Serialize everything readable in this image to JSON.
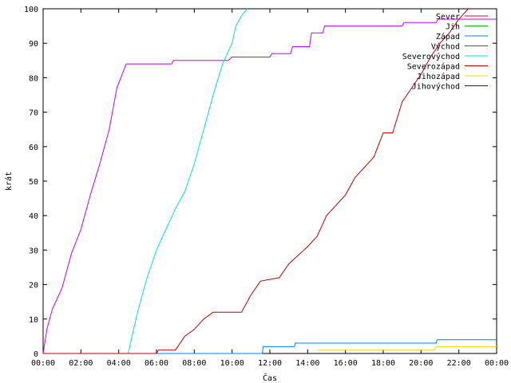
{
  "chart_data": {
    "type": "line",
    "xlabel": "Čas",
    "ylabel": "krát",
    "xlim": [
      0,
      24
    ],
    "ylim": [
      0,
      100
    ],
    "x_ticks": [
      {
        "v": 0,
        "label": "00:00"
      },
      {
        "v": 2,
        "label": "02:00"
      },
      {
        "v": 4,
        "label": "04:00"
      },
      {
        "v": 6,
        "label": "06:00"
      },
      {
        "v": 8,
        "label": "08:00"
      },
      {
        "v": 10,
        "label": "10:00"
      },
      {
        "v": 12,
        "label": "12:00"
      },
      {
        "v": 14,
        "label": "14:00"
      },
      {
        "v": 16,
        "label": "16:00"
      },
      {
        "v": 18,
        "label": "18:00"
      },
      {
        "v": 20,
        "label": "20:00"
      },
      {
        "v": 22,
        "label": "22:00"
      },
      {
        "v": 24,
        "label": "00:00"
      }
    ],
    "y_ticks": [
      {
        "v": 0,
        "label": "0"
      },
      {
        "v": 10,
        "label": "10"
      },
      {
        "v": 20,
        "label": "20"
      },
      {
        "v": 30,
        "label": "30"
      },
      {
        "v": 40,
        "label": "40"
      },
      {
        "v": 50,
        "label": "50"
      },
      {
        "v": 60,
        "label": "60"
      },
      {
        "v": 70,
        "label": "70"
      },
      {
        "v": 80,
        "label": "80"
      },
      {
        "v": 90,
        "label": "90"
      },
      {
        "v": 100,
        "label": "100"
      }
    ],
    "legend_position": "top-right",
    "series": [
      {
        "name": "Sever",
        "color": "#ff0000",
        "x": [],
        "y": []
      },
      {
        "name": "Jih",
        "color": "#00c000",
        "x": [],
        "y": []
      },
      {
        "name": "Západ",
        "color": "#0080ff",
        "x": [
          0,
          11.6,
          11.65,
          13.3,
          13.35,
          20.8,
          20.85,
          24
        ],
        "y": [
          0,
          0,
          2,
          2,
          3,
          3,
          4,
          4
        ]
      },
      {
        "name": "Východ",
        "color": "#c000ff",
        "x": [
          0,
          0.2,
          0.5,
          1.0,
          1.5,
          2.0,
          2.5,
          3.0,
          3.5,
          3.9,
          4.4,
          6.8,
          6.9,
          8.3,
          8.4,
          9.8,
          10.0,
          12.0,
          12.1,
          13.1,
          13.2,
          14.1,
          14.2,
          14.8,
          14.9,
          19.0,
          19.1,
          20.8,
          20.9,
          24
        ],
        "y": [
          0,
          7,
          13,
          19,
          29,
          36,
          46,
          55,
          65,
          77,
          84,
          84,
          85,
          85,
          85,
          85,
          86,
          86,
          87,
          87,
          89,
          89,
          93,
          93,
          95,
          95,
          96,
          96,
          97,
          97
        ]
      },
      {
        "name": "Severovýchod",
        "color": "#00e0e0",
        "x": [
          4.5,
          5.0,
          5.5,
          6.0,
          6.5,
          7.0,
          7.5,
          8.0,
          8.5,
          9.0,
          9.5,
          10.0,
          10.2,
          10.5,
          10.8
        ],
        "y": [
          0,
          12,
          22,
          30,
          36,
          42,
          47,
          55,
          65,
          75,
          84,
          90,
          95,
          98,
          100
        ]
      },
      {
        "name": "Severozápad",
        "color": "#c00000",
        "x": [
          0,
          6.0,
          6.1,
          7.0,
          7.5,
          8.0,
          8.5,
          9.0,
          10.5,
          11.0,
          11.5,
          12.5,
          13.0,
          14.0,
          14.5,
          15.0,
          16.0,
          16.5,
          17.5,
          18.0,
          18.5,
          19.0,
          19.5,
          20.0,
          20.5,
          21.0,
          21.5,
          22.0,
          22.5
        ],
        "y": [
          0,
          0,
          1,
          1,
          5,
          7,
          10,
          12,
          12,
          17,
          21,
          22,
          26,
          31,
          34,
          40,
          46,
          51,
          57,
          64,
          64,
          73,
          77,
          81,
          86,
          90,
          93,
          97,
          100
        ]
      },
      {
        "name": "Jihozápad",
        "color": "#ffd700",
        "x": [
          14.5,
          20.7,
          20.8,
          24
        ],
        "y": [
          1,
          1,
          2,
          2
        ]
      },
      {
        "name": "Jihovýchod",
        "color": "#400080",
        "x": [],
        "y": []
      }
    ]
  }
}
